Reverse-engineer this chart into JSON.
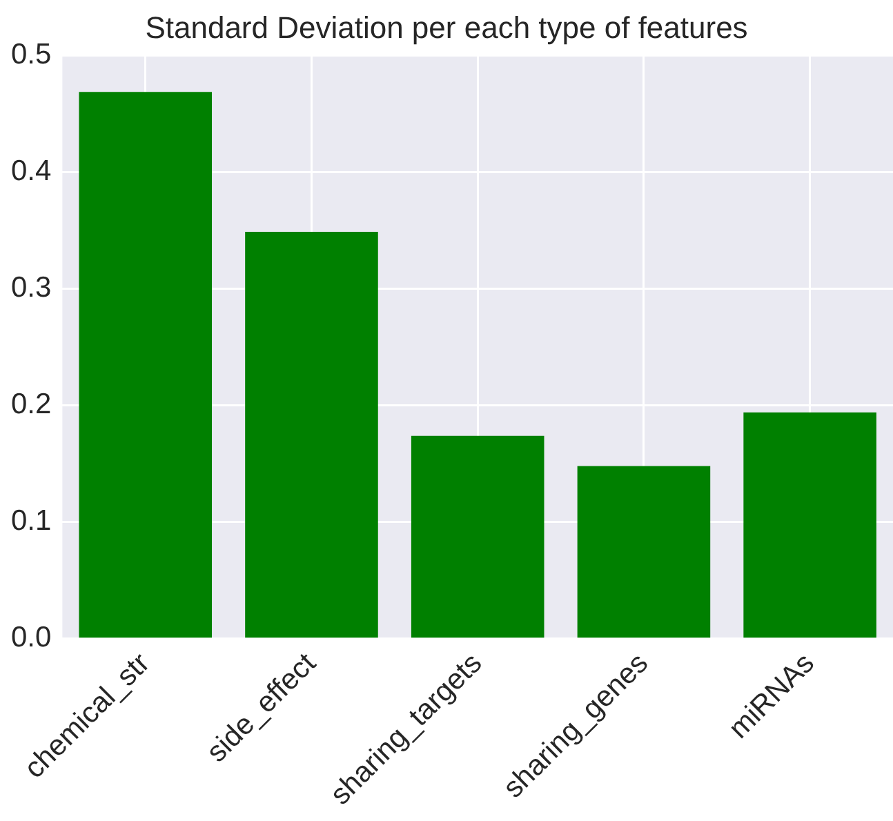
{
  "chart_data": {
    "type": "bar",
    "title": "Standard Deviation per each type of features",
    "categories": [
      "chemical_str",
      "side_effect",
      "sharing_targets",
      "sharing_genes",
      "miRNAs"
    ],
    "values": [
      0.469,
      0.349,
      0.174,
      0.148,
      0.194
    ],
    "color": "#008000",
    "ylim": [
      0,
      0.5
    ],
    "yticks": [
      {
        "value": 0,
        "label": "0.0"
      },
      0.1,
      0.2,
      0.3,
      0.4,
      0.5
    ],
    "grid": true
  }
}
